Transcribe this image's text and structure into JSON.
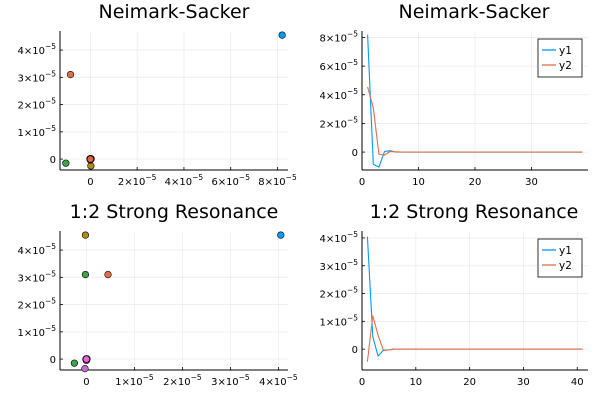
{
  "chart_data": [
    {
      "type": "scatter",
      "title": "Neimark-Sacker",
      "xlabel": "",
      "ylabel": "",
      "xlim": [
        -1.3e-05,
        8.45e-05
      ],
      "ylim": [
        -4e-06,
        4.7e-05
      ],
      "grid": true,
      "xticks": [
        {
          "value": 0,
          "mant": "0",
          "exp": ""
        },
        {
          "value": 2e-05,
          "mant": "2×10",
          "exp": "−5"
        },
        {
          "value": 4e-05,
          "mant": "4×10",
          "exp": "−5"
        },
        {
          "value": 6e-05,
          "mant": "6×10",
          "exp": "−5"
        },
        {
          "value": 8e-05,
          "mant": "8×10",
          "exp": "−5"
        }
      ],
      "yticks": [
        {
          "value": 0,
          "mant": "0",
          "exp": ""
        },
        {
          "value": 1e-05,
          "mant": "1×10",
          "exp": "−5"
        },
        {
          "value": 2e-05,
          "mant": "2×10",
          "exp": "−5"
        },
        {
          "value": 3e-05,
          "mant": "3×10",
          "exp": "−5"
        },
        {
          "value": 4e-05,
          "mant": "4×10",
          "exp": "−5"
        }
      ],
      "points": [
        {
          "x": 8.2e-05,
          "y": 4.55e-05,
          "color": "#009af9"
        },
        {
          "x": -8.5e-06,
          "y": 3.1e-05,
          "color": "#e26f46"
        },
        {
          "x": -1.05e-05,
          "y": -1.5e-06,
          "color": "#3da44d"
        },
        {
          "x": 0,
          "y": 0,
          "color": "#c271d2"
        },
        {
          "x": 2e-07,
          "y": -2.5e-06,
          "color": "#ac8d18"
        },
        {
          "x": 1e-07,
          "y": 2e-07,
          "color": "#00a9ad"
        },
        {
          "x": 0,
          "y": -3e-07,
          "color": "#ed5d92"
        },
        {
          "x": -2e-07,
          "y": 1e-07,
          "color": "#c68125"
        },
        {
          "x": 3e-07,
          "y": 1e-07,
          "color": "#00a98d"
        },
        {
          "x": 0,
          "y": 1e-07,
          "color": "#8e971e"
        },
        {
          "x": 0,
          "y": 0,
          "color": "#00a8cb"
        },
        {
          "x": 1e-07,
          "y": 0,
          "color": "#9b7fe9"
        },
        {
          "x": -1e-07,
          "y": 0,
          "color": "#618df6"
        },
        {
          "x": 0,
          "y": 1e-07,
          "color": "#f061dd"
        },
        {
          "x": 0,
          "y": 0,
          "color": "#dd6445"
        }
      ]
    },
    {
      "type": "line",
      "title": "Neimark-Sacker",
      "xlabel": "",
      "ylabel": "",
      "xlim": [
        0,
        40
      ],
      "ylim": [
        -1.25e-05,
        8.45e-05
      ],
      "grid": true,
      "legend": "top-right",
      "xticks": [
        {
          "value": 0,
          "mant": "0",
          "exp": ""
        },
        {
          "value": 10,
          "mant": "10",
          "exp": ""
        },
        {
          "value": 20,
          "mant": "20",
          "exp": ""
        },
        {
          "value": 30,
          "mant": "30",
          "exp": ""
        }
      ],
      "yticks": [
        {
          "value": 0,
          "mant": "0",
          "exp": ""
        },
        {
          "value": 2e-05,
          "mant": "2×10",
          "exp": "−5"
        },
        {
          "value": 4e-05,
          "mant": "4×10",
          "exp": "−5"
        },
        {
          "value": 6e-05,
          "mant": "6×10",
          "exp": "−5"
        },
        {
          "value": 8e-05,
          "mant": "8×10",
          "exp": "−5"
        }
      ],
      "series": [
        {
          "name": "y1",
          "color": "#009af9",
          "x": [
            1,
            2,
            3,
            4,
            5,
            6,
            7,
            8,
            9,
            10,
            11,
            12,
            13,
            14,
            15,
            16,
            17,
            18,
            19,
            20,
            21,
            22,
            23,
            24,
            25,
            26,
            27,
            28,
            29,
            30,
            31,
            32,
            33,
            34,
            35,
            36,
            37,
            38,
            39
          ],
          "y": [
            8.2e-05,
            -8.5e-06,
            -1.05e-05,
            5e-07,
            1e-06,
            0,
            0,
            0,
            0,
            0,
            0,
            0,
            0,
            0,
            0,
            0,
            0,
            0,
            0,
            0,
            0,
            0,
            0,
            0,
            0,
            0,
            0,
            0,
            0,
            0,
            0,
            0,
            0,
            0,
            0,
            0,
            0,
            0,
            0
          ]
        },
        {
          "name": "y2",
          "color": "#e26f46",
          "x": [
            1,
            2,
            3,
            4,
            5,
            6,
            7,
            8,
            9,
            10,
            11,
            12,
            13,
            14,
            15,
            16,
            17,
            18,
            19,
            20,
            21,
            22,
            23,
            24,
            25,
            26,
            27,
            28,
            29,
            30,
            31,
            32,
            33,
            34,
            35,
            36,
            37,
            38,
            39
          ],
          "y": [
            4.55e-05,
            3.1e-05,
            -1.5e-06,
            -2e-06,
            5e-07,
            2e-07,
            0,
            0,
            0,
            0,
            0,
            0,
            0,
            0,
            0,
            0,
            0,
            0,
            0,
            0,
            0,
            0,
            0,
            0,
            0,
            0,
            0,
            0,
            0,
            0,
            0,
            0,
            0,
            0,
            0,
            0,
            0,
            0,
            0
          ]
        }
      ]
    },
    {
      "type": "scatter",
      "title": "1:2 Strong Resonance",
      "xlabel": "",
      "ylabel": "",
      "xlim": [
        -5.5e-06,
        4.2e-05
      ],
      "ylim": [
        -4e-06,
        4.7e-05
      ],
      "grid": true,
      "xticks": [
        {
          "value": 0,
          "mant": "0",
          "exp": ""
        },
        {
          "value": 1e-05,
          "mant": "1×10",
          "exp": "−5"
        },
        {
          "value": 2e-05,
          "mant": "2×10",
          "exp": "−5"
        },
        {
          "value": 3e-05,
          "mant": "3×10",
          "exp": "−5"
        },
        {
          "value": 4e-05,
          "mant": "4×10",
          "exp": "−5"
        }
      ],
      "yticks": [
        {
          "value": 0,
          "mant": "0",
          "exp": ""
        },
        {
          "value": 1e-05,
          "mant": "1×10",
          "exp": "−5"
        },
        {
          "value": 2e-05,
          "mant": "2×10",
          "exp": "−5"
        },
        {
          "value": 3e-05,
          "mant": "3×10",
          "exp": "−5"
        },
        {
          "value": 4e-05,
          "mant": "4×10",
          "exp": "−5"
        }
      ],
      "points": [
        {
          "x": 4.05e-05,
          "y": 4.55e-05,
          "color": "#009af9"
        },
        {
          "x": 4.5e-06,
          "y": 3.1e-05,
          "color": "#e26f46"
        },
        {
          "x": -2.5e-06,
          "y": -1.5e-06,
          "color": "#3da44d"
        },
        {
          "x": -3e-07,
          "y": -3.5e-06,
          "color": "#c271d2"
        },
        {
          "x": -2e-07,
          "y": 4.55e-05,
          "color": "#ac8d18"
        },
        {
          "x": -2e-07,
          "y": 3.1e-05,
          "color": "#3da44d"
        },
        {
          "x": 0,
          "y": 0,
          "color": "#00a9ad"
        },
        {
          "x": 0,
          "y": -5e-07,
          "color": "#ed5d92"
        },
        {
          "x": 1e-07,
          "y": 0,
          "color": "#c68125"
        },
        {
          "x": -1e-07,
          "y": 0,
          "color": "#00a98d"
        },
        {
          "x": 0,
          "y": 1e-07,
          "color": "#8e971e"
        },
        {
          "x": 0,
          "y": 0,
          "color": "#00a8cb"
        },
        {
          "x": 1e-07,
          "y": 1e-07,
          "color": "#9b7fe9"
        },
        {
          "x": 0,
          "y": 0,
          "color": "#618df6"
        },
        {
          "x": 0,
          "y": 0,
          "color": "#f061dd"
        }
      ]
    },
    {
      "type": "line",
      "title": "1:2 Strong Resonance",
      "xlabel": "",
      "ylabel": "",
      "xlim": [
        0,
        42
      ],
      "ylim": [
        -7.5e-06,
        4.25e-05
      ],
      "grid": true,
      "legend": "top-right",
      "xticks": [
        {
          "value": 0,
          "mant": "0",
          "exp": ""
        },
        {
          "value": 10,
          "mant": "10",
          "exp": ""
        },
        {
          "value": 20,
          "mant": "20",
          "exp": ""
        },
        {
          "value": 30,
          "mant": "30",
          "exp": ""
        },
        {
          "value": 40,
          "mant": "40",
          "exp": ""
        }
      ],
      "yticks": [
        {
          "value": 0,
          "mant": "0",
          "exp": ""
        },
        {
          "value": 1e-05,
          "mant": "1×10",
          "exp": "−5"
        },
        {
          "value": 2e-05,
          "mant": "2×10",
          "exp": "−5"
        },
        {
          "value": 3e-05,
          "mant": "3×10",
          "exp": "−5"
        },
        {
          "value": 4e-05,
          "mant": "4×10",
          "exp": "−5"
        }
      ],
      "series": [
        {
          "name": "y1",
          "color": "#009af9",
          "x": [
            1,
            2,
            3,
            4,
            5,
            6,
            7,
            8,
            9,
            10,
            11,
            12,
            13,
            14,
            15,
            16,
            17,
            18,
            19,
            20,
            21,
            22,
            23,
            24,
            25,
            26,
            27,
            28,
            29,
            30,
            31,
            32,
            33,
            34,
            35,
            36,
            37,
            38,
            39,
            40,
            41
          ],
          "y": [
            4.05e-05,
            4.5e-06,
            -2.5e-06,
            -3e-07,
            -3e-07,
            0,
            0,
            0,
            0,
            0,
            0,
            0,
            0,
            0,
            0,
            0,
            0,
            0,
            0,
            0,
            0,
            0,
            0,
            0,
            0,
            0,
            0,
            0,
            0,
            0,
            0,
            0,
            0,
            0,
            0,
            0,
            0,
            0,
            0,
            0,
            0
          ]
        },
        {
          "name": "y2",
          "color": "#e26f46",
          "x": [
            1,
            2,
            3,
            4,
            5,
            6,
            7,
            8,
            9,
            10,
            11,
            12,
            13,
            14,
            15,
            16,
            17,
            18,
            19,
            20,
            21,
            22,
            23,
            24,
            25,
            26,
            27,
            28,
            29,
            30,
            31,
            32,
            33,
            34,
            35,
            36,
            37,
            38,
            39,
            40,
            41
          ],
          "y": [
            -4.5e-06,
            1.2e-05,
            5e-06,
            -5e-07,
            -3e-07,
            0,
            0,
            0,
            0,
            0,
            0,
            0,
            0,
            0,
            0,
            0,
            0,
            0,
            0,
            0,
            0,
            0,
            0,
            0,
            0,
            0,
            0,
            0,
            0,
            0,
            0,
            0,
            0,
            0,
            0,
            0,
            0,
            0,
            0,
            0,
            0
          ]
        }
      ]
    }
  ]
}
